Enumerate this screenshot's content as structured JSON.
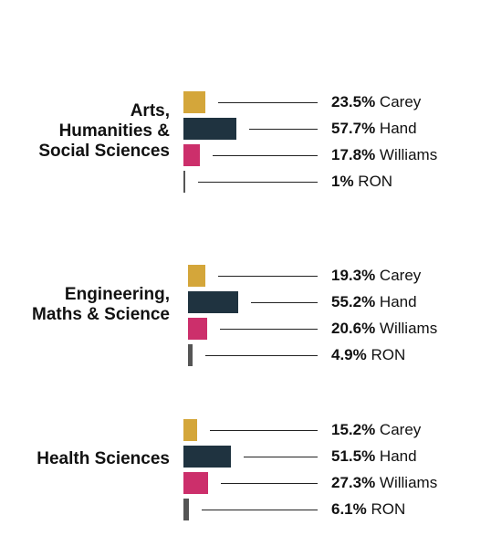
{
  "chart_data": {
    "type": "bar",
    "orientation": "horizontal",
    "legend": "none",
    "grid": false,
    "colors": {
      "Carey": "#d4a63a",
      "Hand": "#1f3340",
      "Williams": "#cc2f6b",
      "RON": "#555555"
    },
    "candidates": [
      "Carey",
      "Hand",
      "Williams",
      "RON"
    ],
    "groups": [
      {
        "label_lines": [
          "Arts,",
          "Humanities &",
          "Social Sciences"
        ],
        "values": [
          23.5,
          57.7,
          17.8,
          1
        ],
        "value_labels": [
          "23.5%",
          "57.7%",
          "17.8%",
          "1%"
        ]
      },
      {
        "label_lines": [
          "Engineering,",
          "Maths & Science"
        ],
        "values": [
          19.3,
          55.2,
          20.6,
          4.9
        ],
        "value_labels": [
          "19.3%",
          "55.2%",
          "20.6%",
          "4.9%"
        ]
      },
      {
        "label_lines": [
          "Health Sciences"
        ],
        "values": [
          15.2,
          51.5,
          27.3,
          6.1
        ],
        "value_labels": [
          "15.2%",
          "51.5%",
          "27.3%",
          "6.1%"
        ]
      }
    ]
  }
}
